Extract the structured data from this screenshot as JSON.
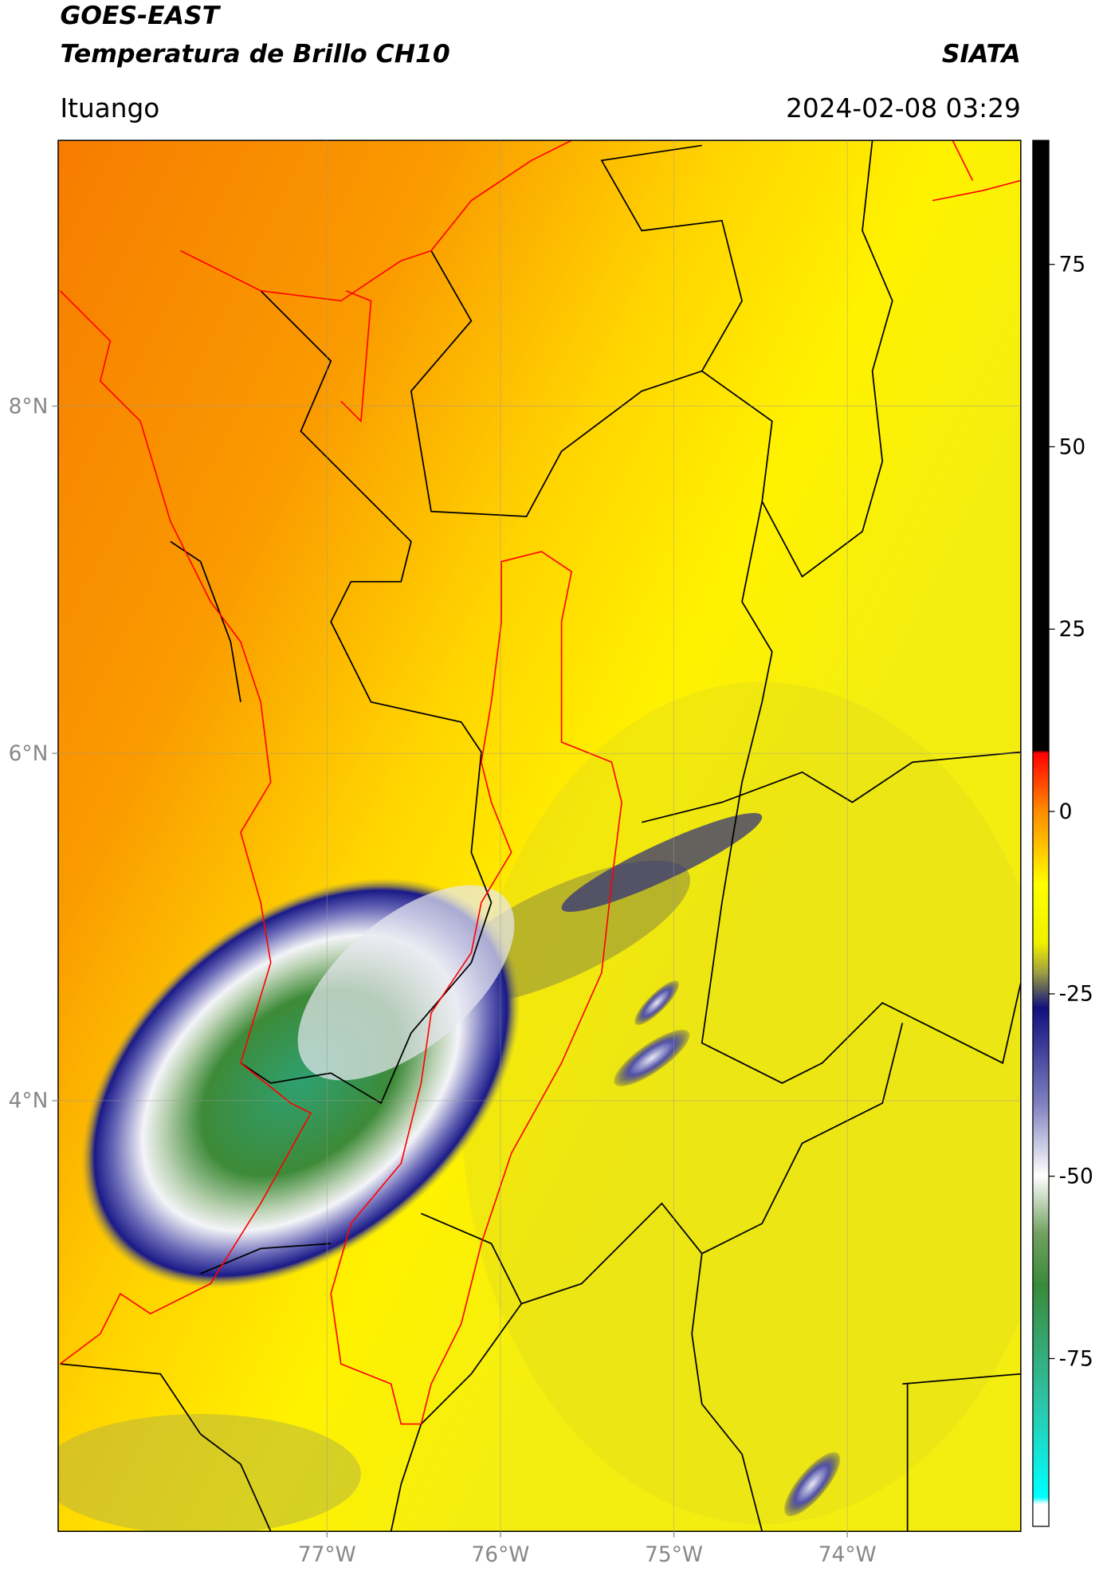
{
  "header": {
    "title": "GOES-EAST",
    "subtitle": "Temperatura de Brillo CH10",
    "source": "SIATA",
    "location": "Ituango",
    "datetime": "2024-02-08 03:29"
  },
  "map": {
    "xlim": [
      -78.55,
      -73.0
    ],
    "ylim": [
      1.52,
      9.53
    ],
    "xticks": [
      {
        "value": -77,
        "label": "77°W"
      },
      {
        "value": -76,
        "label": "76°W"
      },
      {
        "value": -75,
        "label": "75°W"
      },
      {
        "value": -74,
        "label": "74°W"
      }
    ],
    "yticks": [
      {
        "value": 4,
        "label": "4°N"
      },
      {
        "value": 6,
        "label": "6°N"
      },
      {
        "value": 8,
        "label": "8°N"
      }
    ],
    "grid": true
  },
  "colorbar": {
    "lim": [
      -98,
      92
    ],
    "ticks": [
      -75,
      -50,
      -25,
      0,
      25,
      50,
      75
    ]
  }
}
